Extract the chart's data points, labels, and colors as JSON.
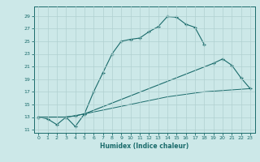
{
  "xlabel": "Humidex (Indice chaleur)",
  "bg_color": "#cce8e8",
  "grid_color": "#b0d0d0",
  "line_color": "#1a6b6b",
  "xlim": [
    -0.5,
    23.5
  ],
  "ylim": [
    10.5,
    30.5
  ],
  "xticks": [
    0,
    1,
    2,
    3,
    4,
    5,
    6,
    7,
    8,
    9,
    10,
    11,
    12,
    13,
    14,
    15,
    16,
    17,
    18,
    19,
    20,
    21,
    22,
    23
  ],
  "yticks": [
    11,
    13,
    15,
    17,
    19,
    21,
    23,
    25,
    27,
    29
  ],
  "l1x": [
    0,
    1,
    2,
    3,
    4,
    5,
    6,
    7,
    8,
    9,
    10,
    11,
    12,
    13,
    14,
    15,
    16,
    17,
    18
  ],
  "l1y": [
    13.0,
    12.7,
    11.8,
    13.0,
    11.5,
    13.5,
    17.0,
    20.0,
    23.0,
    25.0,
    25.3,
    25.5,
    26.5,
    27.3,
    28.9,
    28.8,
    27.7,
    27.2,
    24.5
  ],
  "l2x": [
    0,
    3,
    4,
    5,
    19,
    20,
    21,
    22,
    23
  ],
  "l2y": [
    13.0,
    13.0,
    13.2,
    13.5,
    21.5,
    22.2,
    21.2,
    19.2,
    17.5
  ],
  "l3x": [
    0,
    3,
    4,
    5,
    6,
    7,
    8,
    9,
    10,
    11,
    12,
    13,
    14,
    15,
    16,
    17,
    18,
    19,
    20,
    21,
    22,
    23
  ],
  "l3y": [
    13.0,
    13.0,
    13.2,
    13.5,
    13.8,
    14.1,
    14.4,
    14.7,
    15.0,
    15.3,
    15.6,
    15.9,
    16.2,
    16.4,
    16.6,
    16.8,
    17.0,
    17.1,
    17.2,
    17.3,
    17.4,
    17.5
  ]
}
